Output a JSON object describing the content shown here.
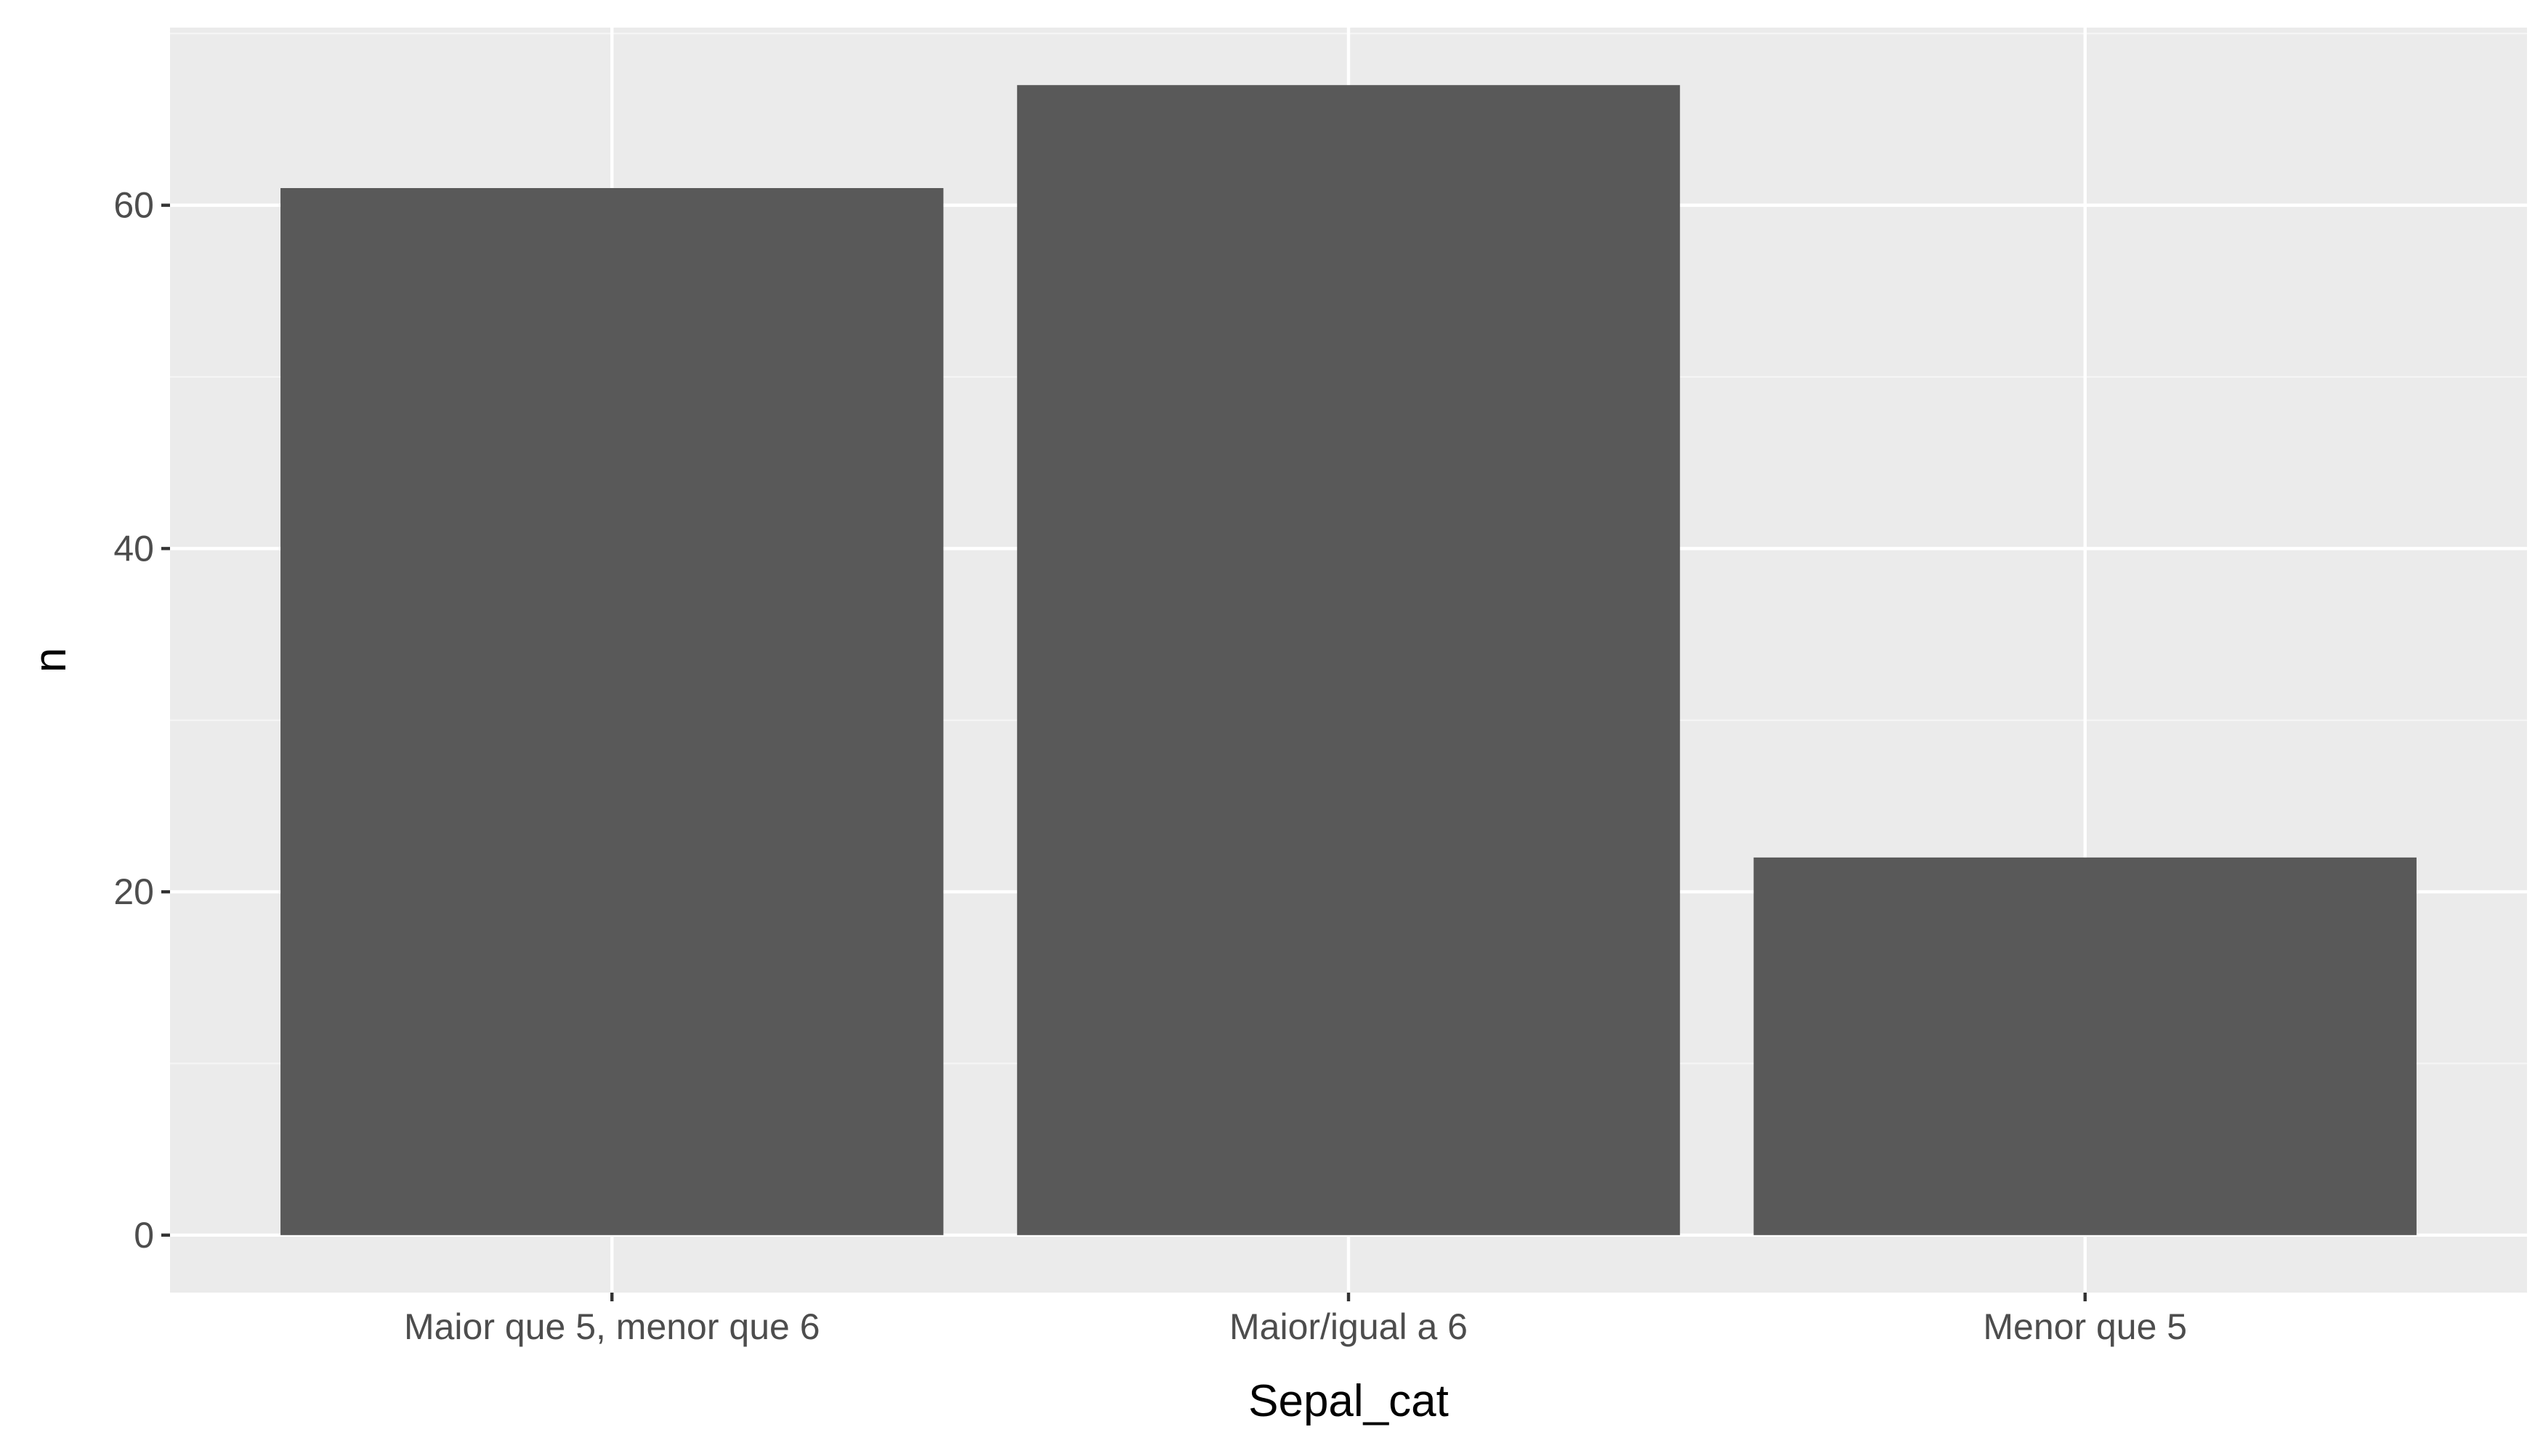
{
  "colors": {
    "panel_background": "#ebebeb",
    "grid_major": "#ffffff",
    "grid_minor": "#f5f5f5",
    "bar_fill": "#595959",
    "tick_text": "#4d4d4d",
    "axis_title": "#000000",
    "tick_mark": "#333333"
  },
  "chart_data": {
    "type": "bar",
    "categories": [
      "Maior que 5, menor que 6",
      "Maior/igual a 6",
      "Menor que 5"
    ],
    "values": [
      61,
      67,
      22
    ],
    "title": "",
    "xlabel": "Sepal_cat",
    "ylabel": "n",
    "ylim": [
      -3.35,
      70.35
    ],
    "yticks": [
      0,
      20,
      40,
      60
    ],
    "ytick_labels": [
      "0",
      "20",
      "40",
      "60"
    ],
    "grid": true,
    "legend": "none"
  }
}
